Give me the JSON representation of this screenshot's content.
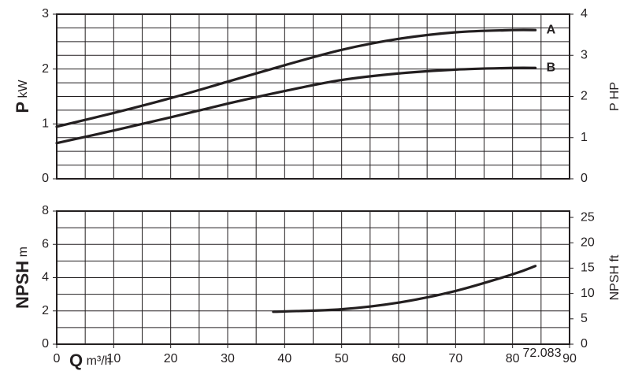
{
  "chart_data": [
    {
      "type": "line",
      "ylabel": "P",
      "ylabel_unit": "kW",
      "y2label": "P HP",
      "xlim": [
        0,
        90
      ],
      "xgrid_step": 5,
      "ylim": [
        0,
        3
      ],
      "yticks": [
        0,
        1,
        2,
        3
      ],
      "ygrid_step": 0.25,
      "y2lim": [
        0,
        4
      ],
      "y2ticks": [
        0,
        1,
        2,
        3,
        4
      ],
      "grid": true,
      "color": "#231f20",
      "series": [
        {
          "name": "A",
          "x": [
            0,
            10,
            20,
            30,
            40,
            50,
            60,
            70,
            80,
            84
          ],
          "values": [
            0.95,
            1.2,
            1.47,
            1.77,
            2.07,
            2.35,
            2.55,
            2.67,
            2.71,
            2.71
          ]
        },
        {
          "name": "B",
          "x": [
            0,
            10,
            20,
            30,
            40,
            50,
            60,
            70,
            80,
            84
          ],
          "values": [
            0.65,
            0.88,
            1.12,
            1.37,
            1.6,
            1.8,
            1.92,
            1.99,
            2.02,
            2.02
          ]
        }
      ]
    },
    {
      "type": "line",
      "ylabel": "NPSH",
      "ylabel_unit": "m",
      "y2label": "NPSH ft",
      "xlabel": "Q",
      "xlabel_unit": "m³/h",
      "annotation": "72.083",
      "xlim": [
        0,
        90
      ],
      "xticks": [
        0,
        10,
        20,
        30,
        40,
        50,
        60,
        70,
        80,
        90
      ],
      "xgrid_step": 5,
      "ylim": [
        0,
        8
      ],
      "yticks": [
        0,
        2,
        4,
        6,
        8
      ],
      "ygrid_step": 1,
      "y2lim": [
        0,
        26.25
      ],
      "y2ticks": [
        0,
        5,
        10,
        15,
        20,
        25
      ],
      "grid": true,
      "color": "#231f20",
      "series": [
        {
          "x": [
            38,
            40,
            50,
            60,
            70,
            80,
            84
          ],
          "values": [
            1.95,
            1.97,
            2.1,
            2.5,
            3.2,
            4.2,
            4.7
          ]
        }
      ]
    }
  ]
}
